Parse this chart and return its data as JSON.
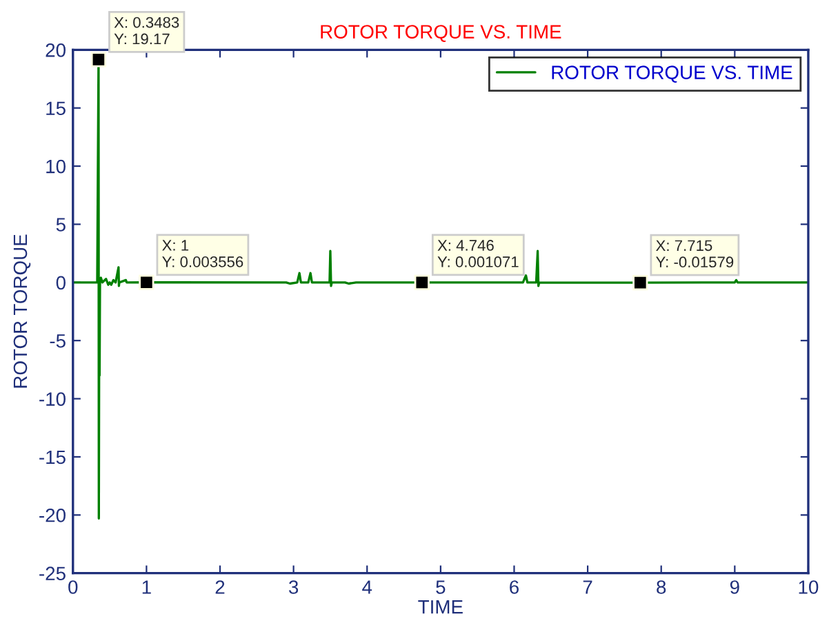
{
  "chart_data": {
    "type": "line",
    "title": "ROTOR TORQUE VS. TIME",
    "xlabel": "TIME",
    "ylabel": "ROTOR TORQUE",
    "xlim": [
      0,
      10
    ],
    "xticks": [
      0,
      1,
      2,
      3,
      4,
      5,
      6,
      7,
      8,
      9,
      10
    ],
    "ylim": [
      -25,
      20
    ],
    "yticks": [
      -25,
      -20,
      -15,
      -10,
      -5,
      0,
      5,
      10,
      15,
      20
    ],
    "grid": false,
    "legend": "top right",
    "series": [
      {
        "name": "ROTOR TORQUE VS. TIME",
        "color": "#008000",
        "x": [
          0,
          0.33,
          0.3483,
          0.352,
          0.358,
          0.362,
          0.368,
          0.38,
          0.4,
          0.45,
          0.48,
          0.5,
          0.52,
          0.55,
          0.58,
          0.62,
          0.625,
          0.63,
          0.72,
          0.73,
          1,
          2.9,
          2.95,
          3.05,
          3.08,
          3.1,
          3.2,
          3.23,
          3.25,
          3.49,
          3.5,
          3.51,
          3.52,
          3.7,
          3.75,
          3.85,
          4.746,
          6.12,
          6.16,
          6.18,
          6.3,
          6.32,
          6.33,
          6.34,
          7.715,
          9.0,
          9.02,
          9.04,
          10
        ],
        "values": [
          0,
          0,
          19.17,
          -20.3,
          0.3,
          -8,
          0.3,
          0.4,
          0,
          0.3,
          -0.2,
          0,
          -0.2,
          0.2,
          0,
          1.3,
          -0.3,
          0,
          0.2,
          0,
          0.003556,
          0,
          -0.1,
          0,
          0.8,
          0,
          0,
          0.8,
          0,
          0,
          2.7,
          -0.3,
          0,
          0,
          -0.1,
          0,
          0.001071,
          0,
          0.6,
          0,
          0,
          2.7,
          -0.3,
          0,
          -0.01579,
          0,
          0.2,
          0,
          0
        ]
      }
    ],
    "annotations": [
      {
        "text": "X: 0.3483\nY: 19.17",
        "x": 0.3483,
        "y": 19.17
      },
      {
        "text": "X: 1\nY: 0.003556",
        "x": 1,
        "y": 0.003556
      },
      {
        "text": "X: 4.746\nY: 0.001071",
        "x": 4.746,
        "y": 0.001071
      },
      {
        "text": "X: 7.715\nY: -0.01579",
        "x": 7.715,
        "y": -0.01579
      }
    ]
  }
}
